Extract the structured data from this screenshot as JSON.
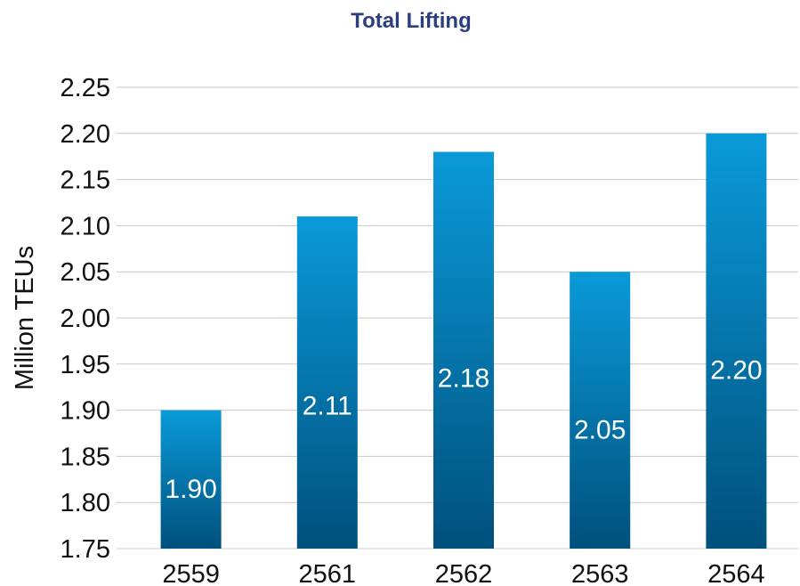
{
  "chart_data": {
    "type": "bar",
    "title": "Total Lifting",
    "ylabel": "Million TEUs",
    "xlabel": "",
    "categories": [
      "2559",
      "2561",
      "2562",
      "2563",
      "2564"
    ],
    "values": [
      1.9,
      2.11,
      2.18,
      2.05,
      2.2
    ],
    "data_labels": [
      "1.90",
      "2.11",
      "2.18",
      "2.05",
      "2.20"
    ],
    "ylim": [
      1.75,
      2.25
    ],
    "yticks": [
      "1.75",
      "1.80",
      "1.85",
      "1.90",
      "1.95",
      "2.00",
      "2.05",
      "2.10",
      "2.15",
      "2.20",
      "2.25"
    ],
    "grid": true,
    "legend": "none",
    "colors": {
      "title": "#2b3f7e",
      "bar_top": "#0a9ad9",
      "bar_bottom": "#00507c",
      "grid": "#c8c8c8"
    }
  }
}
